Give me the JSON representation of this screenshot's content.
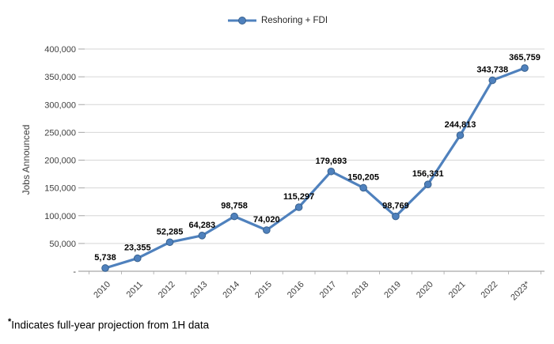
{
  "chart_data": {
    "type": "line",
    "categories": [
      "2010",
      "2011",
      "2012",
      "2013",
      "2014",
      "2015",
      "2016",
      "2017",
      "2018",
      "2019",
      "2020",
      "2021",
      "2022",
      "2023*"
    ],
    "series": [
      {
        "name": "Reshoring + FDI",
        "values": [
          5738,
          23355,
          52285,
          64283,
          98758,
          74020,
          115297,
          179693,
          150205,
          98769,
          156331,
          244813,
          343738,
          365759
        ],
        "value_labels": [
          "5,738",
          "23,355",
          "52,285",
          "64,283",
          "98,758",
          "74,020",
          "115,297",
          "179,693",
          "150,205",
          "98,769",
          "156,331",
          "244,813",
          "343,738",
          "365,759"
        ],
        "color": "#4F81BD",
        "marker_edge": "#38618E"
      }
    ],
    "title": "",
    "xlabel": "",
    "ylabel": "Jobs Announced",
    "ylim": [
      0,
      400000
    ],
    "yticks": {
      "values": [
        0,
        50000,
        100000,
        150000,
        200000,
        250000,
        300000,
        350000,
        400000
      ],
      "labels": [
        "-",
        "50,000",
        "100,000",
        "150,000",
        "200,000",
        "250,000",
        "300,000",
        "350,000",
        "400,000"
      ]
    },
    "grid": true,
    "legend_position": "top",
    "colors": {
      "gridline": "#D6D6D6",
      "axis_line": "#A6A6A6",
      "axis_text": "#3F3F3F",
      "data_label": "#000000"
    }
  },
  "footnote": {
    "marker": "*",
    "text": "Indicates full-year projection from 1H data"
  }
}
